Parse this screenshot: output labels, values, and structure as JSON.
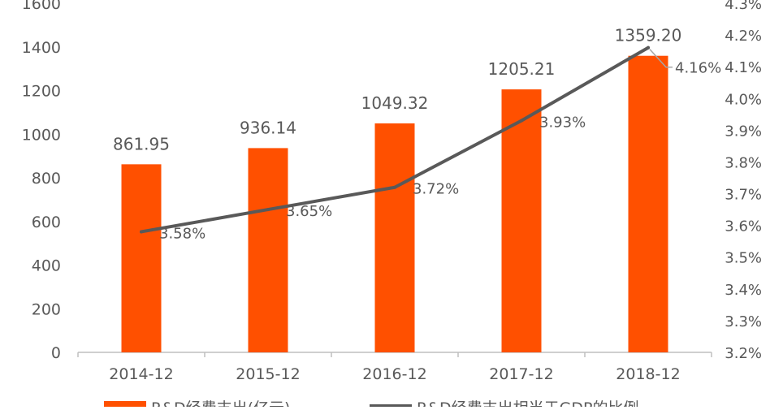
{
  "chart_data": {
    "type": "bar",
    "categories": [
      "2014-12",
      "2015-12",
      "2016-12",
      "2017-12",
      "2018-12"
    ],
    "series": [
      {
        "name": "R&D经费支出(亿元)",
        "type": "bar",
        "axis": "left",
        "values": [
          861.95,
          936.14,
          1049.32,
          1205.21,
          1359.2
        ],
        "labels": [
          "861.95",
          "936.14",
          "1049.32",
          "1205.21",
          "1359.20"
        ],
        "color": "#FF5000"
      },
      {
        "name": "R&D经费支出相当于GDP的比例",
        "type": "line",
        "axis": "right",
        "values": [
          3.58,
          3.65,
          3.72,
          3.93,
          4.16
        ],
        "labels": [
          "3.58%",
          "3.65%",
          "3.72%",
          "3.93%",
          "4.16%"
        ],
        "color": "#595959"
      }
    ],
    "left_axis": {
      "ylim": [
        0,
        1600
      ],
      "ticks": [
        "0",
        "200",
        "400",
        "600",
        "800",
        "1000",
        "1200",
        "1400",
        "1600"
      ]
    },
    "right_axis": {
      "ylim": [
        3.2,
        4.3
      ],
      "ticks": [
        "3.2%",
        "3.3%",
        "3.4%",
        "3.5%",
        "3.6%",
        "3.7%",
        "3.8%",
        "3.9%",
        "4.0%",
        "4.1%",
        "4.2%",
        "4.3%"
      ]
    },
    "grid": false,
    "legend": "bottom",
    "axis_color": "#BFBFBF",
    "text_color": "#595959"
  }
}
